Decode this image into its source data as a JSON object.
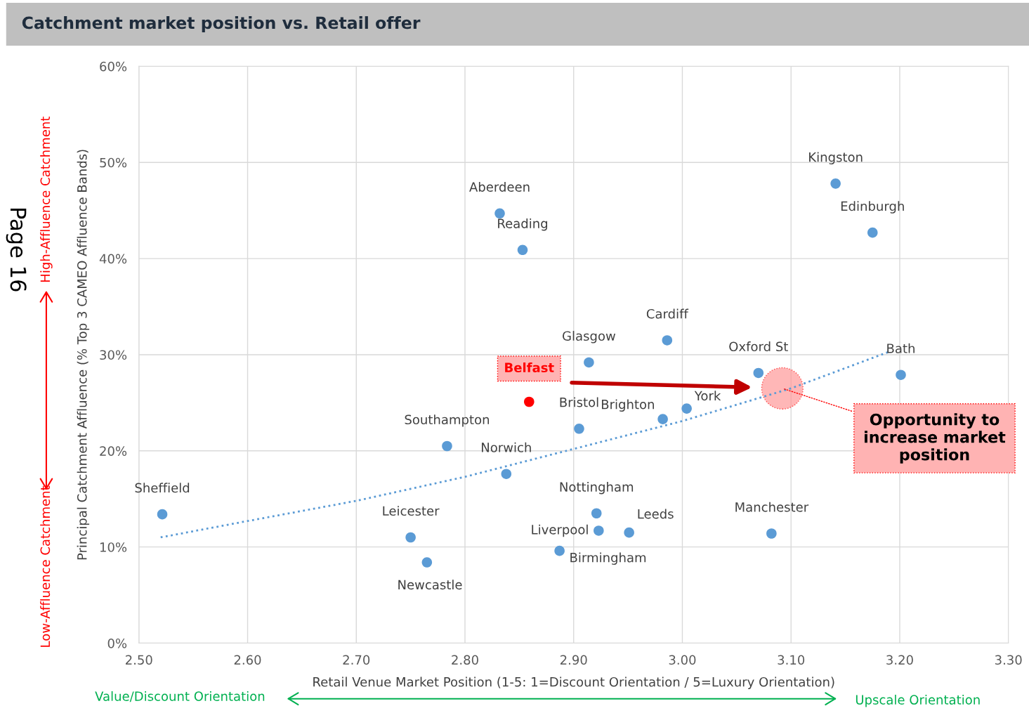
{
  "chart_data": {
    "type": "scatter",
    "title": "Catchment market position vs. Retail offer",
    "xlabel": "Retail Venue Market Position (1-5: 1=Discount Orientation / 5=Luxury Orientation)",
    "ylabel": "Principal Catchment Affluence (% Top 3 CAMEO Affluence Bands)",
    "series": [
      {
        "color": "#5b9bd5",
        "marker": "circle",
        "x": [
          2.5215,
          2.75,
          2.765,
          2.7835,
          2.838,
          2.832,
          2.853,
          2.859,
          2.914,
          2.905,
          2.887,
          2.921,
          2.923,
          2.951,
          2.982,
          3.004,
          2.986,
          3.07,
          3.082,
          3.141,
          3.175,
          3.201
        ],
        "values": [
          13.4,
          11.0,
          8.4,
          20.5,
          17.6,
          44.7,
          40.9,
          25.1,
          29.2,
          22.3,
          9.6,
          13.5,
          11.7,
          11.5,
          23.3,
          24.4,
          31.5,
          28.1,
          11.4,
          47.8,
          42.7,
          27.9
        ],
        "colors": [
          "#5b9bd5",
          "#5b9bd5",
          "#5b9bd5",
          "#5b9bd5",
          "#5b9bd5",
          "#5b9bd5",
          "#5b9bd5",
          "#ff0000",
          "#5b9bd5",
          "#5b9bd5",
          "#5b9bd5",
          "#5b9bd5",
          "#5b9bd5",
          "#5b9bd5",
          "#5b9bd5",
          "#5b9bd5",
          "#5b9bd5",
          "#5b9bd5",
          "#5b9bd5",
          "#5b9bd5",
          "#5b9bd5",
          "#5b9bd5"
        ],
        "value_labels": [
          "Sheffield",
          "Leicester",
          "Newcastle",
          "Southampton",
          "Norwich",
          "Aberdeen",
          "Reading",
          "Belfast",
          "Glasgow",
          "Bristol",
          "Birmingham",
          "Nottingham",
          "Liverpool",
          "Leeds",
          "Brighton",
          "York",
          "Cardiff",
          "Oxford St",
          "Manchester",
          "Kingston",
          "Edinburgh",
          "Bath"
        ]
      },
      {
        "type": "line",
        "color": "#5b9bd5",
        "line_style": "dotted",
        "x": [
          2.52,
          2.6,
          2.7,
          2.8,
          2.9,
          3.0,
          3.1,
          3.19
        ],
        "values": [
          11.0,
          12.7,
          14.8,
          17.3,
          20.2,
          23.1,
          26.5,
          30.3
        ]
      }
    ],
    "xlim": [
      2.5,
      3.3
    ],
    "xticks": [
      {
        "value": 2.5,
        "label": "2.50"
      },
      {
        "value": 2.6,
        "label": "2.60"
      },
      {
        "value": 2.7,
        "label": "2.70"
      },
      {
        "value": 2.8,
        "label": "2.80"
      },
      {
        "value": 2.9,
        "label": "2.90"
      },
      {
        "value": 3.0,
        "label": "3.00"
      },
      {
        "value": 3.1,
        "label": "3.10"
      },
      {
        "value": 3.2,
        "label": "3.20"
      },
      {
        "value": 3.3,
        "label": "3.30"
      }
    ],
    "ylim": [
      0,
      60
    ],
    "yticks": [
      {
        "value": 0,
        "label": "0%"
      },
      {
        "value": 10,
        "label": "10%"
      },
      {
        "value": 20,
        "label": "20%"
      },
      {
        "value": 30,
        "label": "30%"
      },
      {
        "value": 40,
        "label": "40%"
      },
      {
        "value": 50,
        "label": "50%"
      },
      {
        "value": 60,
        "label": "60%"
      }
    ],
    "grid": true,
    "annotations": [
      "High-Affluence Catchment",
      "Low-Affluence Catchment",
      "Value/Discount Orientation",
      "Upscale Orientation",
      "Page 16",
      {
        "text": "Opportunity to increase market position",
        "x": 3.092,
        "y": 26.5
      }
    ]
  }
}
